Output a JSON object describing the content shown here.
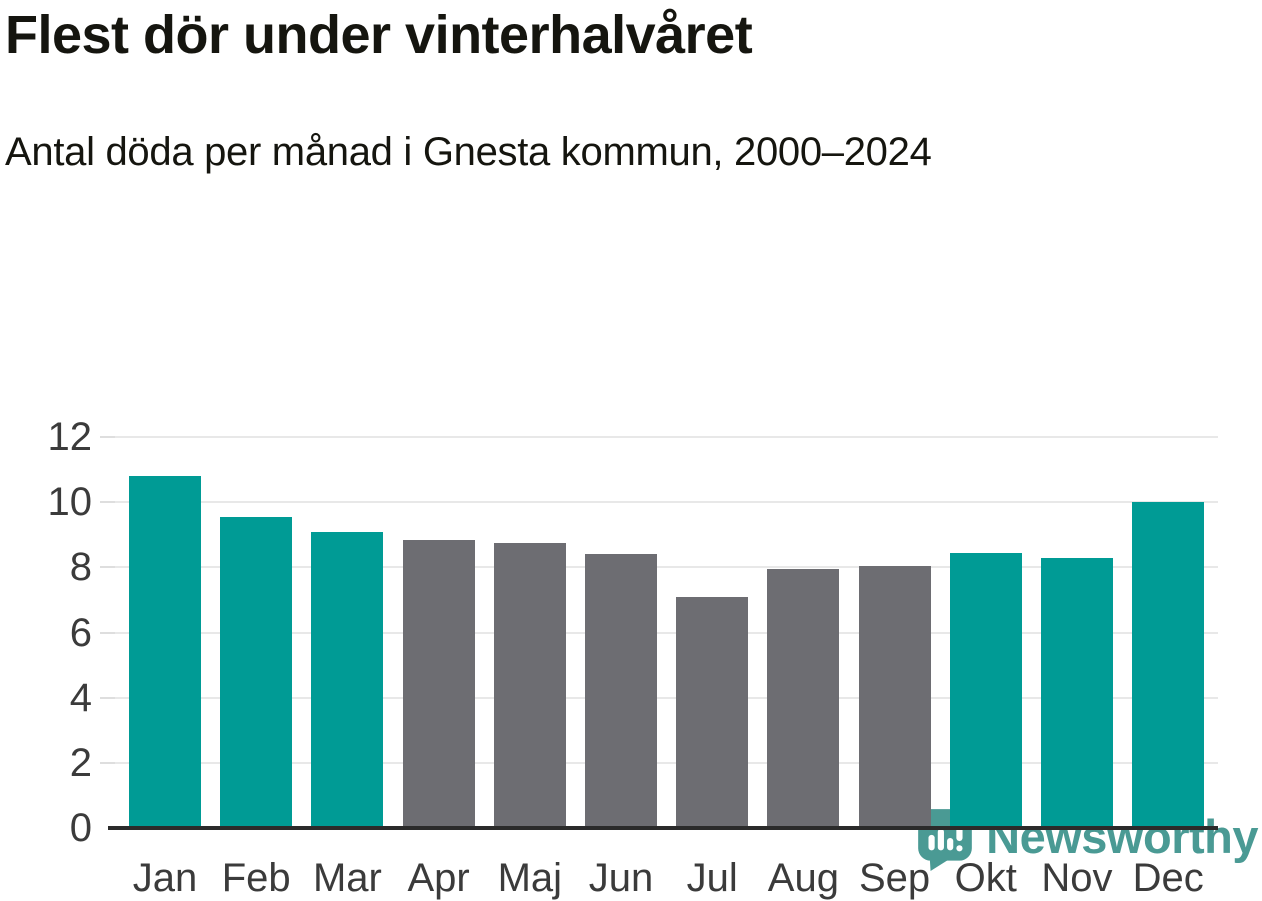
{
  "header": {
    "title": "Flest dör under vinterhalvåret",
    "subtitle": "Antal döda per månad i Gnesta kommun, 2000–2024"
  },
  "chart_data": {
    "type": "bar",
    "title": "Flest dör under vinterhalvåret",
    "subtitle": "Antal döda per månad i Gnesta kommun, 2000–2024",
    "categories": [
      "Jan",
      "Feb",
      "Mar",
      "Apr",
      "Maj",
      "Jun",
      "Jul",
      "Aug",
      "Sep",
      "Okt",
      "Nov",
      "Dec"
    ],
    "values": [
      10.8,
      9.55,
      9.1,
      8.85,
      8.75,
      8.4,
      7.1,
      7.95,
      8.05,
      8.45,
      8.3,
      10.0
    ],
    "bar_groups": [
      "winter",
      "winter",
      "winter",
      "summer",
      "summer",
      "summer",
      "summer",
      "summer",
      "summer",
      "winter",
      "winter",
      "winter"
    ],
    "colors": {
      "winter": "#009b95",
      "summer": "#6d6d72"
    },
    "xlabel": "",
    "ylabel": "",
    "ylim": [
      0,
      12
    ],
    "yticks": [
      0,
      2,
      4,
      6,
      8,
      10,
      12
    ],
    "grid": true,
    "gridline_color": "#e8e8e8",
    "axis_line_color": "#2b2b2b",
    "legend": "none"
  },
  "footer": {
    "brand": "Newsworthy",
    "brand_color": "#4a9a94",
    "logo_icon": "speech-bubble-bar-chart-icon"
  }
}
